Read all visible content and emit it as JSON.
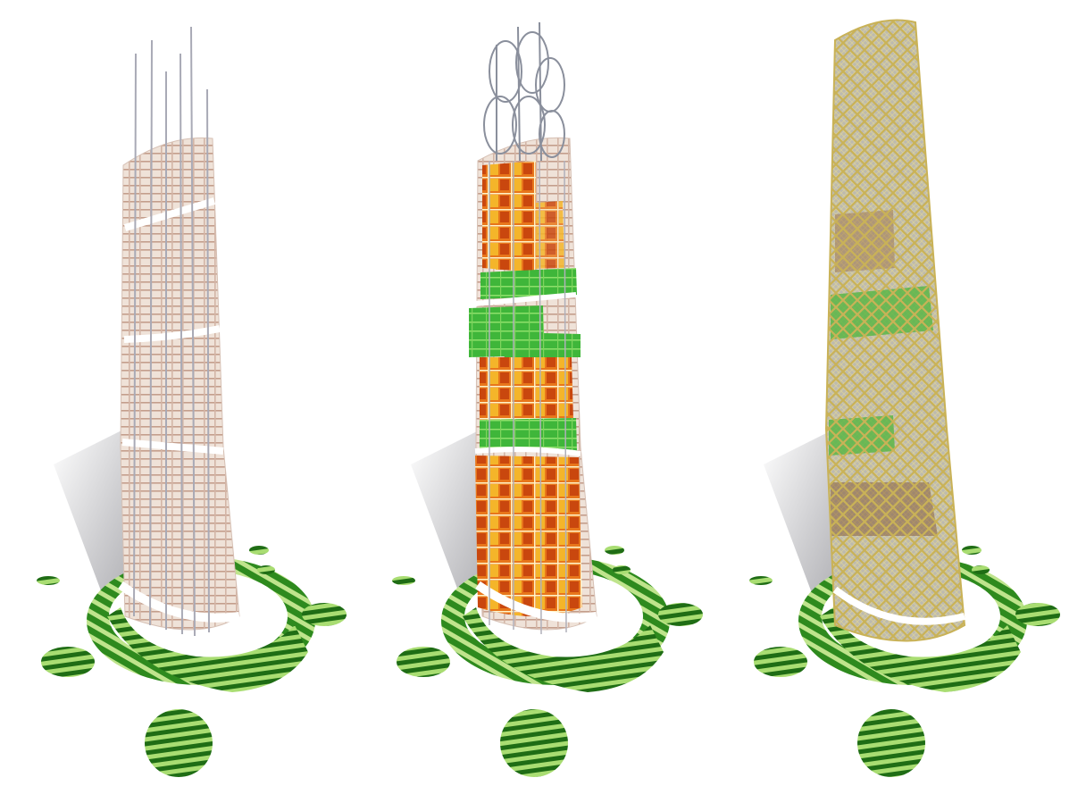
{
  "colors": {
    "background": "#ffffff",
    "plaza_green": "#2f8f1f",
    "plaza_light": "#9fd46a",
    "frame_white": "#f3e9e2",
    "frame_line": "#c9a99a",
    "garden_green": "#3cb83a",
    "pod_orange": "#e8701a",
    "pod_yellow": "#f2c21b",
    "lattice_gold": "#c8b45a",
    "shadow": "#b9b9bd"
  },
  "panels": [
    {
      "stage": "structural-frame"
    },
    {
      "stage": "program-modules"
    },
    {
      "stage": "lattice-skin"
    }
  ]
}
